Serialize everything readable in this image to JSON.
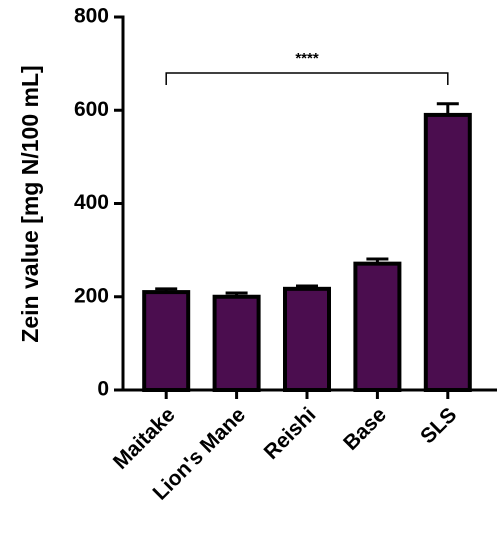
{
  "chart_data": {
    "type": "bar",
    "y_label": "Zein value [mg N/100 mL]",
    "categories": [
      "Maitake",
      "Lion's Mane",
      "Reishi",
      "Base",
      "SLS"
    ],
    "values": [
      210,
      200,
      217,
      271,
      590
    ],
    "errors": [
      7,
      8,
      6,
      10,
      24
    ],
    "color": "#4b0d4f",
    "ylim": [
      0,
      800
    ],
    "yticks": [
      0,
      200,
      400,
      600,
      800
    ],
    "annotation": "****"
  }
}
